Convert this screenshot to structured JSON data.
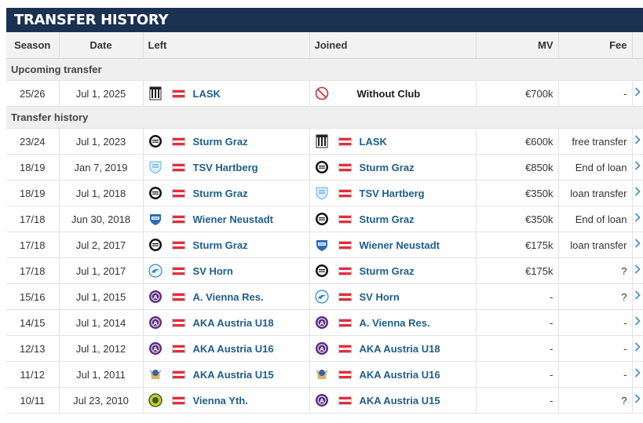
{
  "panel": {
    "title": "TRANSFER HISTORY"
  },
  "columns": {
    "season": "Season",
    "date": "Date",
    "left": "Left",
    "joined": "Joined",
    "mv": "MV",
    "fee": "Fee"
  },
  "sections": {
    "upcoming": "Upcoming transfer",
    "history": "Transfer history"
  },
  "upcoming": [
    {
      "season": "25/26",
      "date": "Jul 1, 2025",
      "left": "LASK",
      "left_crest": "lask-crest-icon",
      "joined": "Without Club",
      "joined_crest": "no-club-icon",
      "mv": "€700k",
      "fee": "-"
    }
  ],
  "history": [
    {
      "season": "23/24",
      "date": "Jul 1, 2023",
      "left": "Sturm Graz",
      "left_crest": "sturm-graz-crest-icon",
      "joined": "LASK",
      "joined_crest": "lask-crest-icon",
      "mv": "€600k",
      "fee": "free transfer"
    },
    {
      "season": "18/19",
      "date": "Jan 7, 2019",
      "left": "TSV Hartberg",
      "left_crest": "tsv-hartberg-crest-icon",
      "joined": "Sturm Graz",
      "joined_crest": "sturm-graz-crest-icon",
      "mv": "€850k",
      "fee": "End of loan"
    },
    {
      "season": "18/19",
      "date": "Jul 1, 2018",
      "left": "Sturm Graz",
      "left_crest": "sturm-graz-crest-icon",
      "joined": "TSV Hartberg",
      "joined_crest": "tsv-hartberg-crest-icon",
      "mv": "€350k",
      "fee": "loan transfer"
    },
    {
      "season": "17/18",
      "date": "Jun 30, 2018",
      "left": "Wiener Neustadt",
      "left_crest": "wiener-neustadt-crest-icon",
      "joined": "Sturm Graz",
      "joined_crest": "sturm-graz-crest-icon",
      "mv": "€350k",
      "fee": "End of loan"
    },
    {
      "season": "17/18",
      "date": "Jul 2, 2017",
      "left": "Sturm Graz",
      "left_crest": "sturm-graz-crest-icon",
      "joined": "Wiener Neustadt",
      "joined_crest": "wiener-neustadt-crest-icon",
      "mv": "€175k",
      "fee": "loan transfer"
    },
    {
      "season": "17/18",
      "date": "Jul 1, 2017",
      "left": "SV Horn",
      "left_crest": "sv-horn-crest-icon",
      "joined": "Sturm Graz",
      "joined_crest": "sturm-graz-crest-icon",
      "mv": "€175k",
      "fee": "?"
    },
    {
      "season": "15/16",
      "date": "Jul 1, 2015",
      "left": "A. Vienna Res.",
      "left_crest": "austria-vienna-crest-icon",
      "joined": "SV Horn",
      "joined_crest": "sv-horn-crest-icon",
      "mv": "-",
      "fee": "?"
    },
    {
      "season": "14/15",
      "date": "Jul 1, 2014",
      "left": "AKA Austria U18",
      "left_crest": "austria-vienna-crest-icon",
      "joined": "A. Vienna Res.",
      "joined_crest": "austria-vienna-crest-icon",
      "mv": "-",
      "fee": "-"
    },
    {
      "season": "12/13",
      "date": "Jul 1, 2012",
      "left": "AKA Austria U16",
      "left_crest": "austria-vienna-crest-icon",
      "joined": "AKA Austria U18",
      "joined_crest": "austria-vienna-crest-icon",
      "mv": "-",
      "fee": "-"
    },
    {
      "season": "11/12",
      "date": "Jul 1, 2011",
      "left": "AKA Austria U15",
      "left_crest": "aka-austria-u15-crest-icon",
      "joined": "AKA Austria U16",
      "joined_crest": "aka-austria-u16-crest-icon",
      "mv": "-",
      "fee": "-"
    },
    {
      "season": "10/11",
      "date": "Jul 23, 2010",
      "left": "Vienna Yth.",
      "left_crest": "vienna-youth-crest-icon",
      "joined": "AKA Austria U15",
      "joined_crest": "austria-vienna-crest-icon",
      "mv": "-",
      "fee": "?"
    }
  ],
  "colors": {
    "header_bg": "#1a3151",
    "link": "#1e5e8c",
    "arrow": "#3d8fc6",
    "flag_red": "#ed2939"
  }
}
